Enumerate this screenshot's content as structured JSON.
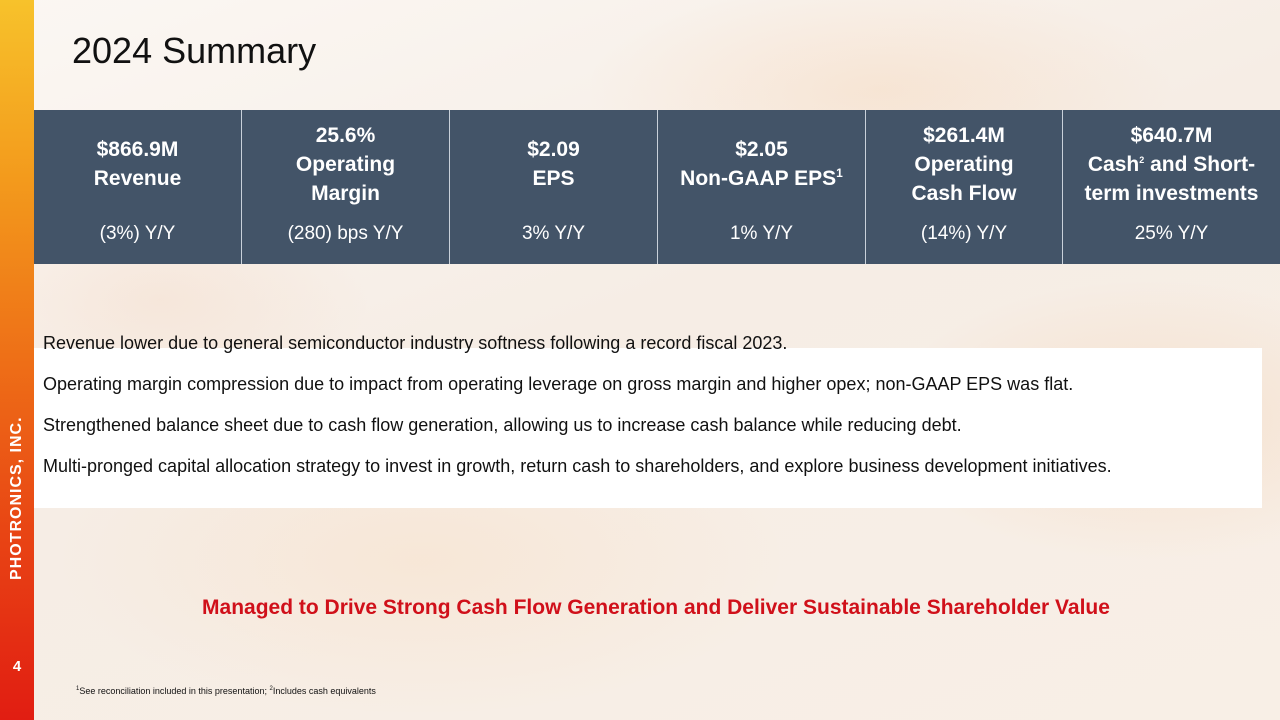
{
  "sidebar": {
    "company": "PHOTRONICS, INC.",
    "page_number": "4"
  },
  "title": "2024 Summary",
  "metrics": [
    {
      "value": "$866.9M",
      "label": "Revenue",
      "change": "(3%) Y/Y"
    },
    {
      "value": "25.6%",
      "label": "Operating Margin",
      "change": "(280) bps Y/Y"
    },
    {
      "value": "$2.09",
      "label": "EPS",
      "change": "3% Y/Y"
    },
    {
      "value": "$2.05",
      "label": "Non-GAAP EPS",
      "label_sup": "1",
      "change": "1% Y/Y"
    },
    {
      "value": "$261.4M",
      "label": "Operating Cash Flow",
      "change": "(14%) Y/Y"
    },
    {
      "value": "$640.7M",
      "label_prefix": "Cash",
      "label_sup": "2",
      "label": " and Short-term investments",
      "change": "25% Y/Y"
    }
  ],
  "bullets": [
    "Revenue lower due to general semiconductor industry softness following a record fiscal 2023.",
    "Operating margin compression due to impact from operating leverage on gross margin and higher opex; non-GAAP EPS was flat.",
    "Strengthened balance sheet due to cash flow generation, allowing us to increase cash balance while reducing debt.",
    "Multi-pronged capital allocation strategy to invest in growth, return cash to shareholders, and explore business development initiatives."
  ],
  "tagline": "Managed to Drive Strong Cash Flow Generation and Deliver Sustainable Shareholder Value",
  "footnote": {
    "sup1": "1",
    "text1": "See reconciliation included in this presentation; ",
    "sup2": "2",
    "text2": "Includes cash equivalents"
  },
  "colors": {
    "band": "#435468",
    "tagline": "#d0101a",
    "sidebar_top": "#f7c22b",
    "sidebar_bottom": "#e11d12"
  }
}
